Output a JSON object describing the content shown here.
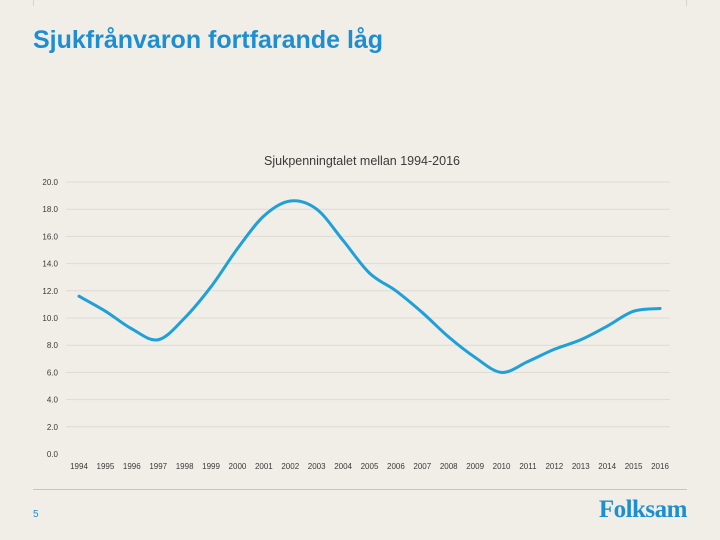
{
  "slide": {
    "title": "Sjukfrånvaron fortfarande låg",
    "page_number": "5",
    "logo_text": "Folksam"
  },
  "colors": {
    "accent": "#1d8fd1",
    "line": "#1fa0d8",
    "background": "#f1eee8",
    "grid": "#dedad3",
    "text": "#3a3a3a"
  },
  "chart_data": {
    "type": "line",
    "title": "Sjukpenningtalet mellan 1994-2016",
    "xlabel": "",
    "ylabel": "",
    "ylim": [
      0,
      20
    ],
    "yticks": [
      "0.0",
      "2.0",
      "4.0",
      "6.0",
      "8.0",
      "10.0",
      "12.0",
      "14.0",
      "16.0",
      "18.0",
      "20.0"
    ],
    "categories": [
      "1994",
      "1995",
      "1996",
      "1997",
      "1998",
      "1999",
      "2000",
      "2001",
      "2002",
      "2003",
      "2004",
      "2005",
      "2006",
      "2007",
      "2008",
      "2009",
      "2010",
      "2011",
      "2012",
      "2013",
      "2014",
      "2015",
      "2016"
    ],
    "series": [
      {
        "name": "Sjukpenningtalet",
        "values": [
          11.6,
          10.5,
          9.2,
          8.4,
          10.0,
          12.3,
          15.1,
          17.5,
          18.6,
          18.0,
          15.7,
          13.3,
          12.0,
          10.4,
          8.6,
          7.1,
          6.0,
          6.8,
          7.7,
          8.4,
          9.4,
          10.5,
          10.7
        ]
      }
    ]
  }
}
